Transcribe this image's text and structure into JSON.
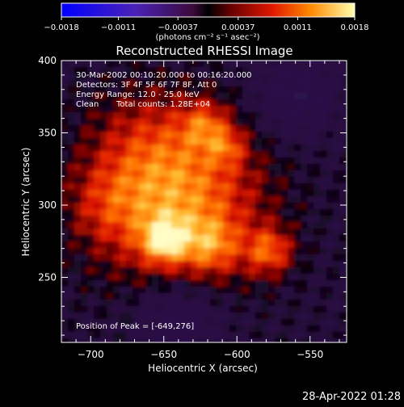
{
  "chart_data": {
    "type": "heatmap",
    "title": "Reconstructed RHESSI Image",
    "xlabel": "Heliocentric X (arcsec)",
    "ylabel": "Heliocentric Y (arcsec)",
    "xlim": [
      -720,
      -525
    ],
    "ylim": [
      205,
      400
    ],
    "x_ticks": [
      -700,
      -650,
      -600,
      -550
    ],
    "y_ticks": [
      250,
      300,
      350,
      400
    ],
    "x_tick_labels": [
      "−700",
      "−650",
      "−600",
      "−550"
    ],
    "y_tick_labels": [
      "250",
      "300",
      "350",
      "400"
    ],
    "colorbar": {
      "min": -0.0018,
      "max": 0.0018,
      "tick_labels": [
        "−0.0018",
        "−0.0011",
        "−0.00037",
        "0.00037",
        "0.0011",
        "0.0018"
      ],
      "tick_values": [
        -0.0018,
        -0.0011,
        -0.00037,
        0.00037,
        0.0011,
        0.0018
      ],
      "units_label": "(photons cm⁻² s⁻¹ asec⁻²)"
    },
    "annotations": {
      "time_range": "30-Mar-2002 00:10:20.000 to 00:16:20.000",
      "detectors": "Detectors: 3F 4F 5F 6F 7F 8F, Att 0",
      "energy_range": "Energy Range: 12.0 - 25.0 keV",
      "clean": "Clean",
      "total_counts": "Total counts: 1.28E+04",
      "peak_position": "Position of Peak = [-649,276]"
    },
    "peak": {
      "x": -649,
      "y": 276
    },
    "footer_timestamp": "28-Apr-2022 01:28"
  }
}
